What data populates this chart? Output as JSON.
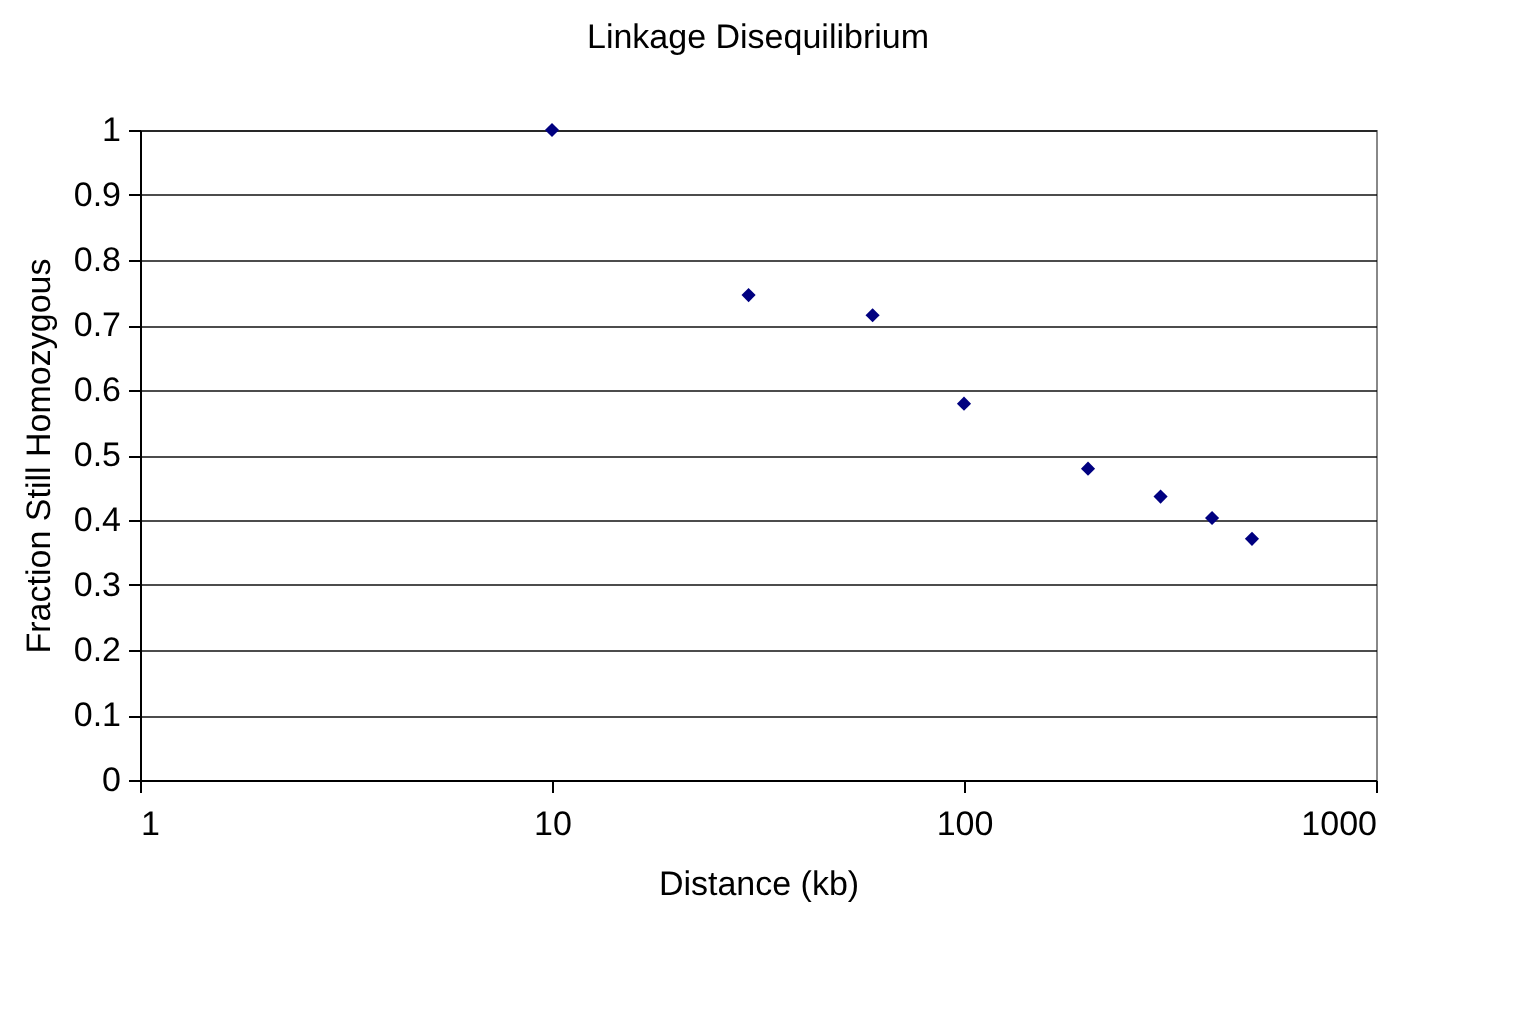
{
  "chart_data": {
    "type": "scatter",
    "title": "Linkage Disequilibrium",
    "xlabel": "Distance (kb)",
    "ylabel": "Fraction Still Homozygous",
    "x": [
      10,
      30,
      60,
      100,
      200,
      300,
      400,
      500
    ],
    "series": [
      {
        "color": "#000080",
        "values": [
          1.0,
          0.746,
          0.715,
          0.579,
          0.479,
          0.436,
          0.403,
          0.371
        ]
      }
    ],
    "log": "x",
    "xlim": [
      1,
      1000
    ],
    "xticks": [
      1,
      10,
      100,
      1000
    ],
    "ylim": [
      0,
      1
    ],
    "yticks": [
      0,
      0.1,
      0.2,
      0.3,
      0.4,
      0.5,
      0.6,
      0.7,
      0.8,
      0.9,
      1
    ],
    "grid": "y",
    "marker": "diamond",
    "legend": false
  }
}
